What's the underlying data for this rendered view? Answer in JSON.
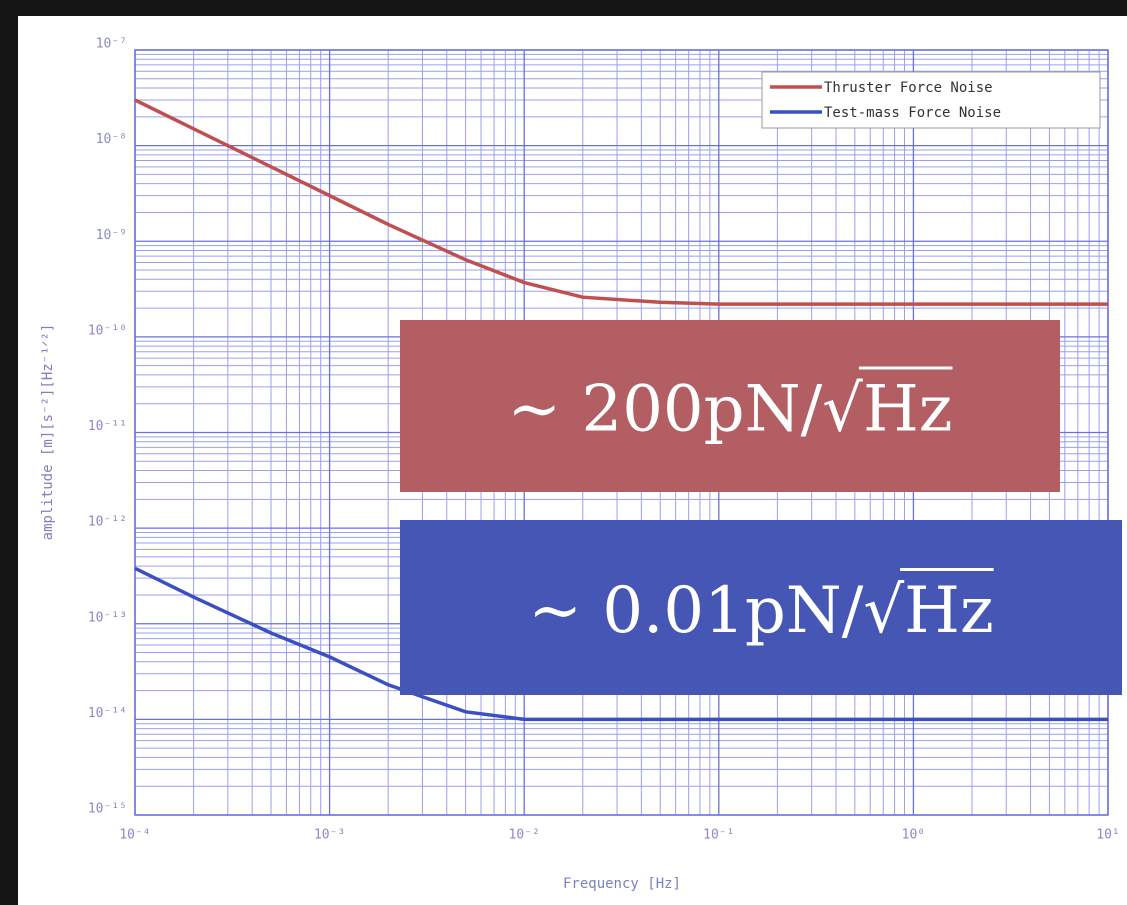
{
  "chart_data": {
    "type": "line",
    "xlabel": "Frequency  [Hz]",
    "ylabel": "amplitude  [m][s⁻²][Hz⁻¹ᐟ²]",
    "log_x": true,
    "log_y": true,
    "grid": true,
    "minor_grid": true,
    "legend": "upper right",
    "x": [
      0.0001,
      0.0002,
      0.0005,
      0.001,
      0.002,
      0.005,
      0.01,
      0.02,
      0.05,
      0.1,
      1,
      10
    ],
    "series": [
      {
        "name": "Thruster Force Noise",
        "color": "#c0504d",
        "values": [
          3e-08,
          1.5e-08,
          6e-09,
          3e-09,
          1.5e-09,
          6.4e-10,
          3.7e-10,
          2.6e-10,
          2.3e-10,
          2.2e-10,
          2.2e-10,
          2.2e-10
        ]
      },
      {
        "name": "Test-mass Force Noise",
        "color": "#3a4fc0",
        "values": [
          3.8e-13,
          1.9e-13,
          8e-14,
          4.5e-14,
          2.3e-14,
          1.2e-14,
          1e-14,
          1e-14,
          1e-14,
          1e-14,
          1e-14,
          1e-14
        ]
      }
    ],
    "xlim": [
      0.0001,
      10
    ],
    "xticks": [
      {
        "value": 0.0001,
        "label": "10⁻⁴"
      },
      {
        "value": 0.001,
        "label": "10⁻³"
      },
      {
        "value": 0.01,
        "label": "10⁻²"
      },
      {
        "value": 0.1,
        "label": "10⁻¹"
      },
      {
        "value": 1,
        "label": "10⁰"
      },
      {
        "value": 10,
        "label": "10¹"
      }
    ],
    "ylim": [
      1e-15,
      1e-07
    ],
    "yticks": [
      {
        "value": 1e-15,
        "label": "10⁻¹⁵"
      },
      {
        "value": 1e-14,
        "label": "10⁻¹⁴"
      },
      {
        "value": 1e-13,
        "label": "10⁻¹³"
      },
      {
        "value": 1e-12,
        "label": "10⁻¹²"
      },
      {
        "value": 1e-11,
        "label": "10⁻¹¹"
      },
      {
        "value": 1e-10,
        "label": "10⁻¹⁰"
      },
      {
        "value": 1e-09,
        "label": "10⁻⁹"
      },
      {
        "value": 1e-08,
        "label": "10⁻⁸"
      },
      {
        "value": 1e-07,
        "label": "10⁻⁷"
      }
    ],
    "annotations": [
      {
        "text": "∼ 200pN/√Hz",
        "color": "#b35e63"
      },
      {
        "text": "∼ 0.01pN/√Hz",
        "color": "#4656b5"
      }
    ]
  }
}
